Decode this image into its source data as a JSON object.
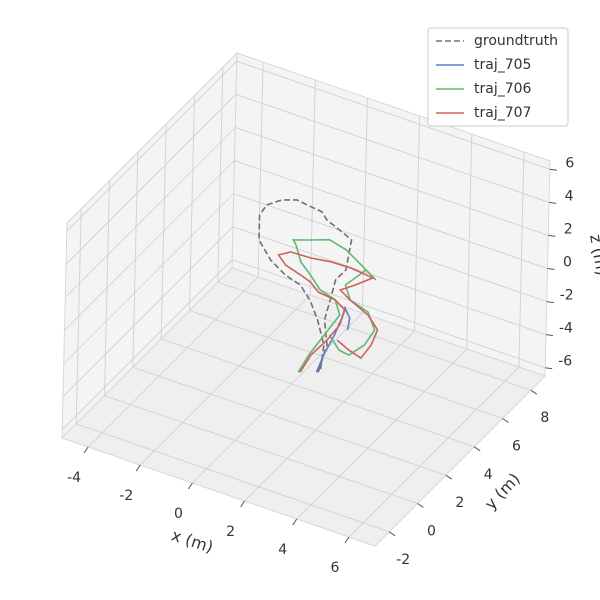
{
  "chart_data": {
    "type": "line3d",
    "xlabel": "x (m)",
    "ylabel": "y (m)",
    "zlabel": "z (m)",
    "xlim": [
      -5,
      7
    ],
    "ylim": [
      -3,
      9
    ],
    "zlim": [
      -6.5,
      6.5
    ],
    "xticks": [
      -4,
      -2,
      0,
      2,
      4,
      6
    ],
    "yticks": [
      -2,
      0,
      2,
      4,
      6,
      8
    ],
    "zticks": [
      -6,
      -4,
      -2,
      0,
      2,
      4,
      6
    ],
    "grid": true,
    "legend": "upper right",
    "series": [
      {
        "name": "groundtruth",
        "color": "#707070",
        "dashed": true,
        "x": [
          1.53,
          1.84,
          1.72,
          1.92,
          2.11,
          2.49,
          2.68,
          2.3,
          1.72,
          1.53,
          0.96,
          0.57,
          0,
          -0.57,
          -0.84,
          -0.84,
          -0.38,
          0.19,
          0.77,
          1.15,
          1.46,
          1.72,
          1.61
        ],
        "y": [
          3,
          3,
          3,
          3,
          3,
          3,
          3,
          3,
          3,
          3,
          3,
          3,
          3,
          3,
          3,
          3,
          3,
          3,
          3,
          3,
          3,
          3,
          3
        ],
        "z": [
          -4.1,
          -2.3,
          -0.85,
          0.47,
          1.79,
          2.6,
          4.52,
          4.8,
          5.21,
          5.59,
          5.7,
          5.79,
          5.48,
          4.87,
          4.12,
          2.6,
          1.64,
          1.04,
          0.75,
          0.05,
          -0.99,
          -2.36,
          -3.94
        ]
      },
      {
        "name": "traj_705",
        "color": "#5f7fc8",
        "dashed": false,
        "x": [
          1.46,
          1.72,
          2.11,
          2.38,
          2.49,
          2.68,
          2.61
        ],
        "y": [
          3,
          3,
          3,
          3,
          3,
          3,
          3
        ],
        "z": [
          -4.15,
          -2.97,
          -1.55,
          -0.37,
          0.3,
          -0.21,
          -0.97
        ]
      },
      {
        "name": "traj_706",
        "color": "#5fb874",
        "dashed": false,
        "x": [
          0.77,
          1.15,
          1.72,
          2.3,
          2.11,
          1.53,
          1.15,
          0.77,
          0.57,
          0.46,
          1.15,
          1.84,
          2.49,
          3.07,
          3.64,
          3.26,
          2.49,
          2.68,
          3.37,
          3.64,
          3.26,
          2.68,
          2.3,
          1.92
        ],
        "y": [
          3,
          3,
          3,
          3,
          3,
          3,
          3,
          3,
          3,
          3,
          3,
          3,
          3,
          3,
          3,
          3,
          3,
          3,
          3,
          3,
          3,
          3,
          3,
          3
        ],
        "z": [
          -4.52,
          -3.28,
          -1.76,
          -0.23,
          0.58,
          0.87,
          1.56,
          2.15,
          3.07,
          3.31,
          3.68,
          4.07,
          3.81,
          3.22,
          2.62,
          3.02,
          1.69,
          0.88,
          0.53,
          -0.41,
          -1.53,
          -2.45,
          -2.35,
          -1.65
        ]
      },
      {
        "name": "traj_707",
        "color": "#d0605e",
        "dashed": false,
        "x": [
          0.84,
          1.23,
          1.84,
          2.3,
          2.49,
          2.11,
          1.46,
          1.15,
          0.77,
          0.19,
          -0.08,
          0.38,
          1.15,
          1.92,
          2.68,
          3.52,
          2.87,
          2.3,
          2.68,
          3.37,
          3.75,
          3.52,
          3.14,
          2.68,
          2.22
        ],
        "y": [
          3,
          3,
          3,
          3,
          3,
          3,
          3,
          3,
          3,
          3,
          3,
          3,
          3,
          3,
          3,
          3,
          3,
          3,
          3,
          3,
          3,
          3,
          3,
          3,
          3
        ],
        "z": [
          -4.48,
          -3.24,
          -1.99,
          -0.84,
          0.18,
          0.58,
          0.7,
          1.14,
          1.36,
          1.65,
          2.11,
          2.54,
          2.59,
          2.78,
          2.82,
          2.68,
          1.9,
          1.28,
          0.88,
          0.35,
          -0.35,
          -1.38,
          -2.38,
          -2.15,
          -1.79
        ]
      }
    ]
  }
}
